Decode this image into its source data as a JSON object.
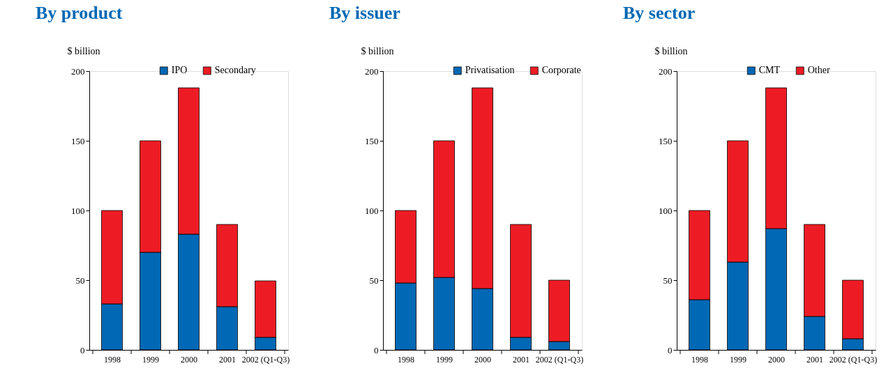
{
  "chart_data": [
    {
      "type": "bar",
      "title": "By product",
      "ylabel": "$ billion",
      "categories": [
        "1998",
        "1999",
        "2000",
        "2001",
        "2002 (Q1-Q3)"
      ],
      "stacked": true,
      "ylim": [
        0,
        200
      ],
      "yticks": [
        0,
        50,
        100,
        150,
        200
      ],
      "legend": "top",
      "grid": false,
      "series": [
        {
          "name": "IPO",
          "color": "#0068b4",
          "values": [
            33,
            70,
            83,
            31,
            9
          ]
        },
        {
          "name": "Secondary",
          "color": "#ed1c24",
          "values": [
            67,
            80,
            105,
            59,
            40.5
          ]
        }
      ]
    },
    {
      "type": "bar",
      "title": "By issuer",
      "ylabel": "$ billion",
      "categories": [
        "1998",
        "1999",
        "2000",
        "2001",
        "2002 (Q1-Q3)"
      ],
      "stacked": true,
      "ylim": [
        0,
        200
      ],
      "yticks": [
        0,
        50,
        100,
        150,
        200
      ],
      "legend": "top",
      "grid": false,
      "series": [
        {
          "name": "Privatisation",
          "color": "#0068b4",
          "values": [
            48,
            52,
            44,
            9,
            6
          ]
        },
        {
          "name": "Corporate",
          "color": "#ed1c24",
          "values": [
            52,
            98,
            144,
            81,
            44
          ]
        }
      ]
    },
    {
      "type": "bar",
      "title": "By sector",
      "ylabel": "$ billion",
      "categories": [
        "1998",
        "1999",
        "2000",
        "2001",
        "2002 (Q1-Q3)"
      ],
      "stacked": true,
      "ylim": [
        0,
        200
      ],
      "yticks": [
        0,
        50,
        100,
        150,
        200
      ],
      "legend": "top",
      "grid": false,
      "series": [
        {
          "name": "CMT",
          "color": "#0068b4",
          "values": [
            36,
            63,
            87,
            24,
            8
          ]
        },
        {
          "name": "Other",
          "color": "#ed1c24",
          "values": [
            64,
            87,
            101,
            66,
            42
          ]
        }
      ]
    }
  ]
}
